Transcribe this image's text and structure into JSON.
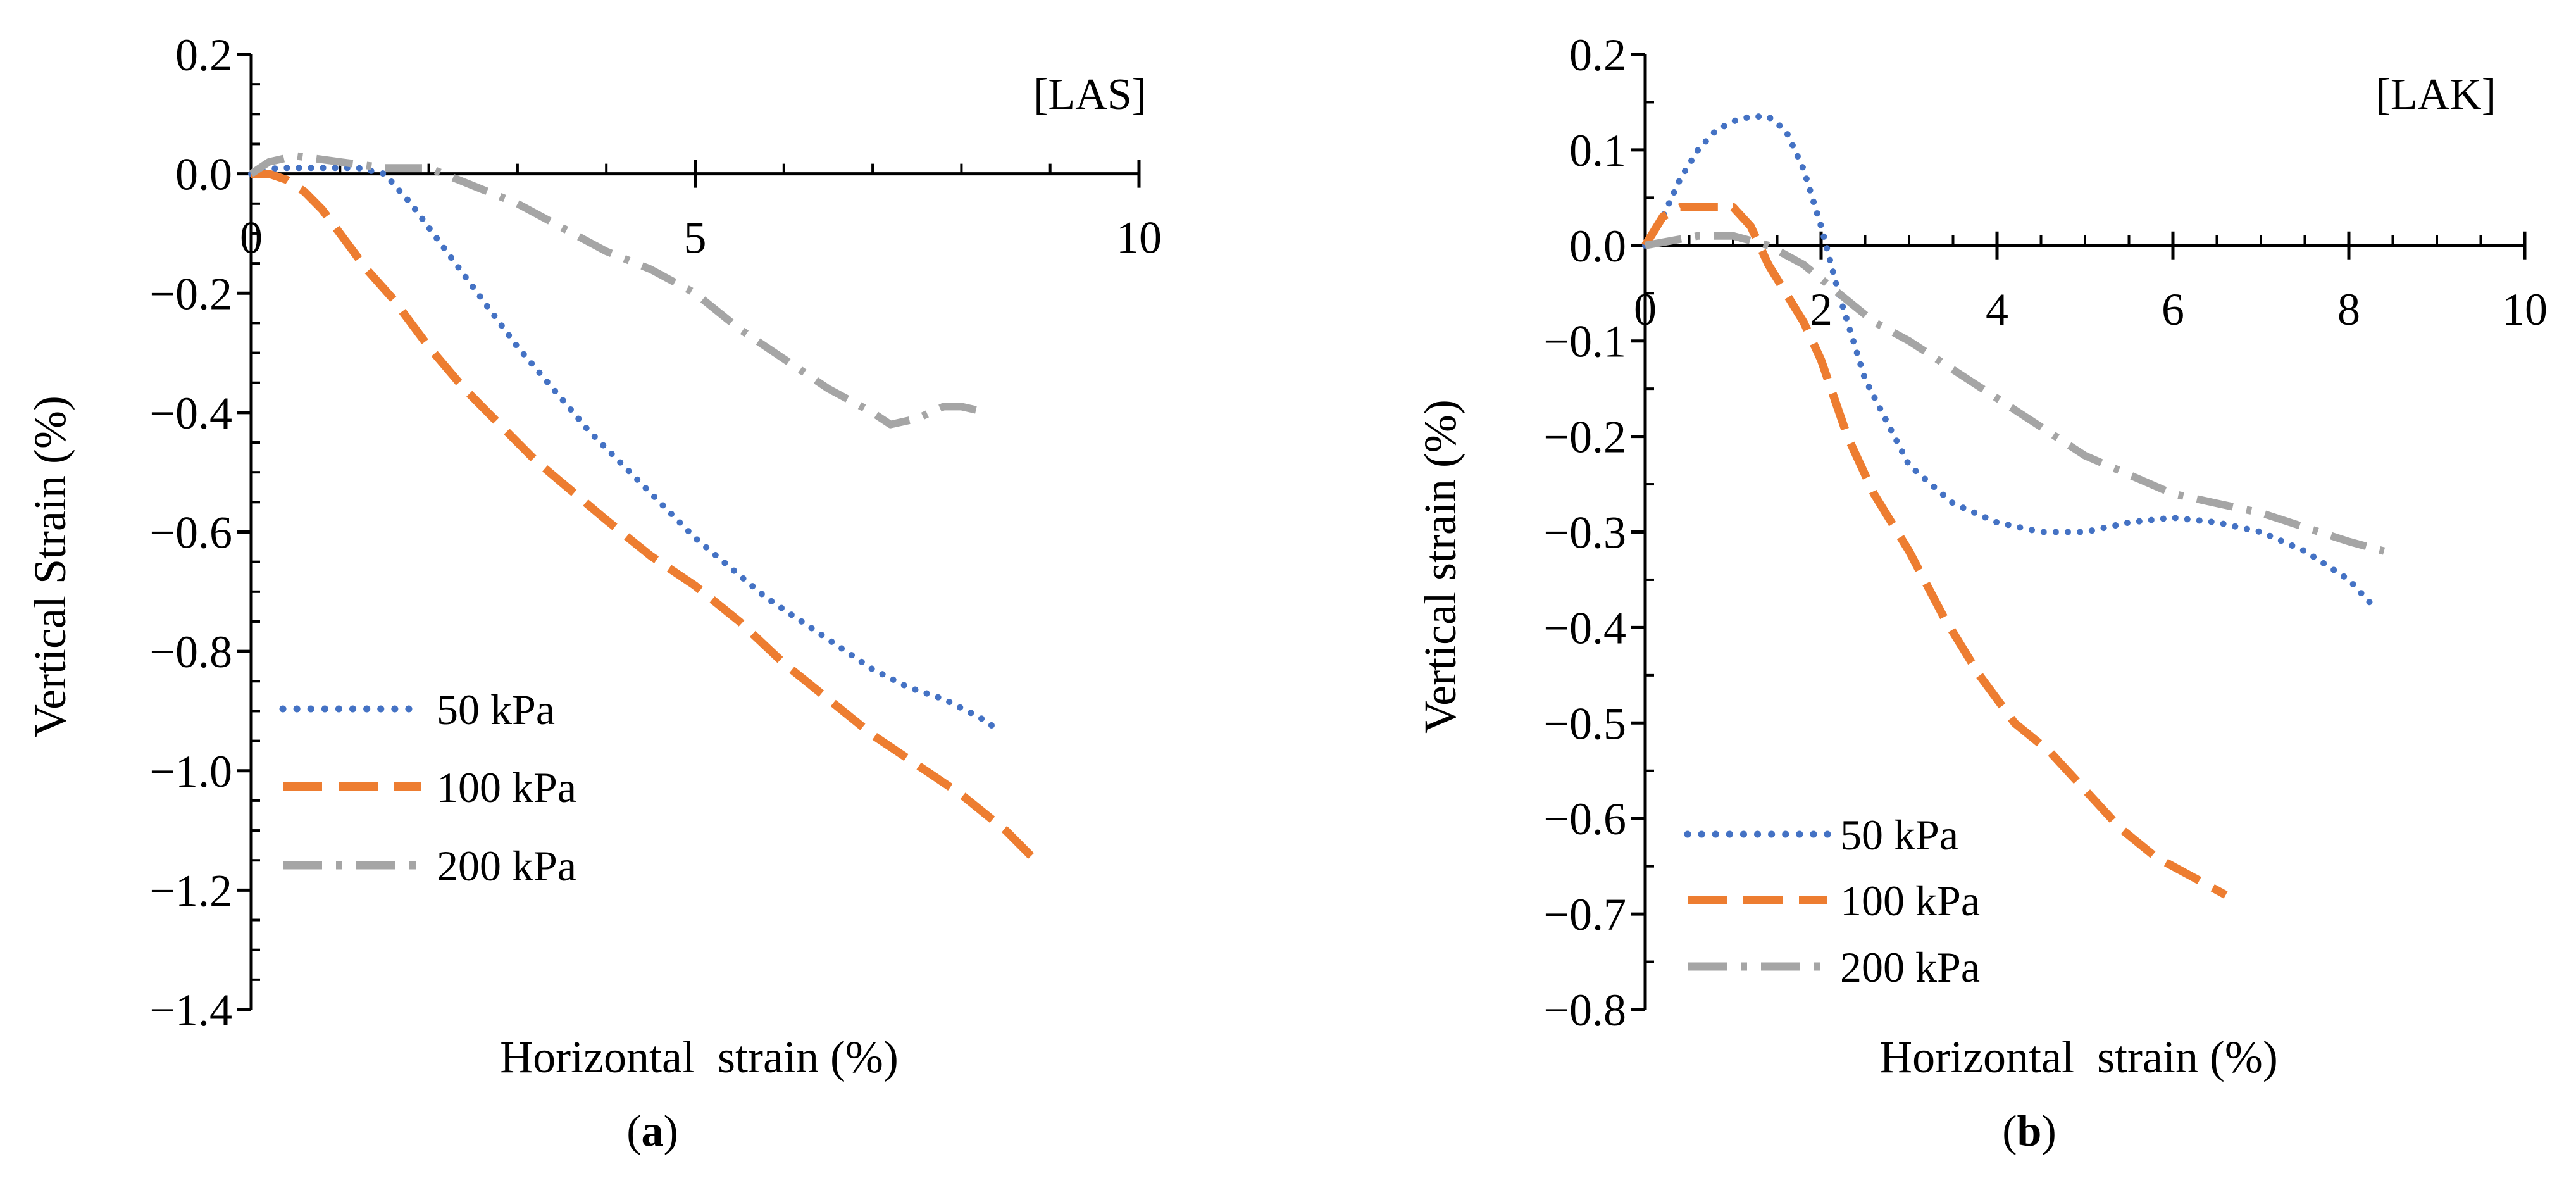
{
  "figure": {
    "captions": [
      {
        "open": "(",
        "letter": "a",
        "close": ")"
      },
      {
        "open": "(",
        "letter": "b",
        "close": ")"
      }
    ]
  },
  "chart_data": [
    {
      "type": "line",
      "panel": "a",
      "tag": "[LAS]",
      "xlabel": "Horizontal  strain (%)",
      "ylabel": "Vertical Strain (%)",
      "xlim": [
        0,
        10
      ],
      "ylim": [
        -1.4,
        0.2
      ],
      "xticks": [
        0,
        5,
        10
      ],
      "xtick_labels": [
        "0",
        "5",
        "10"
      ],
      "xminor_step": 1,
      "yticks": [
        0.2,
        0.0,
        -0.2,
        -0.4,
        -0.6,
        -0.8,
        -1.0,
        -1.2,
        -1.4
      ],
      "ytick_labels": [
        "0.2",
        "0.0",
        "−0.2",
        "−0.4",
        "−0.6",
        "−0.8",
        "−1.0",
        "−1.2",
        "−1.4"
      ],
      "yminor_step": 0.05,
      "grid": false,
      "legend_position": "bottom-left",
      "series": [
        {
          "name": "50 kPa",
          "color": "#4472C4",
          "style": "dotted",
          "x": [
            0,
            0.3,
            0.6,
            0.9,
            1.2,
            1.5,
            1.8,
            2.2,
            2.6,
            3.0,
            3.4,
            3.8,
            4.2,
            4.6,
            5.0,
            5.4,
            5.8,
            6.2,
            6.6,
            7.0,
            7.4,
            7.8,
            8.2,
            8.4
          ],
          "y": [
            0,
            0.01,
            0.01,
            0.01,
            0.01,
            0.0,
            -0.05,
            -0.13,
            -0.21,
            -0.29,
            -0.36,
            -0.43,
            -0.49,
            -0.55,
            -0.61,
            -0.66,
            -0.71,
            -0.75,
            -0.79,
            -0.83,
            -0.86,
            -0.88,
            -0.91,
            -0.93
          ]
        },
        {
          "name": "100 kPa",
          "color": "#ED7D31",
          "style": "dashed",
          "x": [
            0,
            0.2,
            0.4,
            0.6,
            0.8,
            1.0,
            1.3,
            1.6,
            2.0,
            2.4,
            2.8,
            3.2,
            3.6,
            4.0,
            4.5,
            5.0,
            5.5,
            6.0,
            6.5,
            7.0,
            7.5,
            8.0,
            8.5,
            8.9
          ],
          "y": [
            0,
            0.0,
            -0.01,
            -0.03,
            -0.06,
            -0.1,
            -0.16,
            -0.21,
            -0.29,
            -0.36,
            -0.42,
            -0.48,
            -0.53,
            -0.58,
            -0.64,
            -0.69,
            -0.75,
            -0.82,
            -0.88,
            -0.94,
            -0.99,
            -1.04,
            -1.1,
            -1.16
          ]
        },
        {
          "name": "200 kPa",
          "color": "#A5A5A5",
          "style": "dash-dot",
          "x": [
            0,
            0.2,
            0.5,
            1.0,
            1.5,
            2.0,
            2.5,
            3.0,
            3.5,
            4.0,
            4.5,
            5.0,
            5.5,
            6.0,
            6.5,
            7.0,
            7.2,
            7.5,
            7.8,
            8.0,
            8.3
          ],
          "y": [
            0,
            0.02,
            0.03,
            0.02,
            0.01,
            0.01,
            -0.02,
            -0.05,
            -0.09,
            -0.13,
            -0.16,
            -0.2,
            -0.26,
            -0.31,
            -0.36,
            -0.4,
            -0.42,
            -0.41,
            -0.39,
            -0.39,
            -0.4
          ]
        }
      ]
    },
    {
      "type": "line",
      "panel": "b",
      "tag": "[LAK]",
      "xlabel": "Horizontal  strain (%)",
      "ylabel": "Vertical strain (%)",
      "xlim": [
        0,
        10
      ],
      "ylim": [
        -0.8,
        0.2
      ],
      "xticks": [
        0,
        2,
        4,
        6,
        8,
        10
      ],
      "xtick_labels": [
        "0",
        "2",
        "4",
        "6",
        "8",
        "10"
      ],
      "xminor_step": 0.5,
      "yticks": [
        0.2,
        0.1,
        0.0,
        -0.1,
        -0.2,
        -0.3,
        -0.4,
        -0.5,
        -0.6,
        -0.7,
        -0.8
      ],
      "ytick_labels": [
        "0.2",
        "0.1",
        "0.0",
        "−0.1",
        "−0.2",
        "−0.3",
        "−0.4",
        "−0.5",
        "−0.6",
        "−0.7",
        "−0.8"
      ],
      "yminor_step": 0.05,
      "grid": false,
      "legend_position": "bottom-left",
      "series": [
        {
          "name": "50 kPa",
          "color": "#4472C4",
          "style": "dotted",
          "x": [
            0,
            0.2,
            0.4,
            0.6,
            0.8,
            1.0,
            1.2,
            1.4,
            1.6,
            1.8,
            2.0,
            2.2,
            2.5,
            3.0,
            3.5,
            4.0,
            4.5,
            5.0,
            5.5,
            6.0,
            6.5,
            7.0,
            7.5,
            8.0,
            8.3
          ],
          "y": [
            0,
            0.03,
            0.07,
            0.1,
            0.12,
            0.13,
            0.135,
            0.135,
            0.12,
            0.08,
            0.02,
            -0.05,
            -0.14,
            -0.23,
            -0.27,
            -0.29,
            -0.3,
            -0.3,
            -0.29,
            -0.285,
            -0.29,
            -0.3,
            -0.32,
            -0.35,
            -0.38
          ]
        },
        {
          "name": "100 kPa",
          "color": "#ED7D31",
          "style": "dashed",
          "x": [
            0,
            0.2,
            0.4,
            0.7,
            1.0,
            1.2,
            1.4,
            1.6,
            1.8,
            2.0,
            2.3,
            2.6,
            3.0,
            3.4,
            3.8,
            4.2,
            4.6,
            5.0,
            5.4,
            5.8,
            6.2,
            6.6
          ],
          "y": [
            0,
            0.03,
            0.04,
            0.04,
            0.04,
            0.02,
            -0.02,
            -0.05,
            -0.08,
            -0.12,
            -0.2,
            -0.26,
            -0.32,
            -0.39,
            -0.45,
            -0.5,
            -0.53,
            -0.57,
            -0.61,
            -0.64,
            -0.66,
            -0.68
          ]
        },
        {
          "name": "200 kPa",
          "color": "#A5A5A5",
          "style": "dash-dot",
          "x": [
            0,
            0.3,
            0.6,
            1.0,
            1.4,
            1.8,
            2.2,
            2.6,
            3.0,
            3.5,
            4.0,
            4.5,
            5.0,
            5.5,
            6.0,
            6.5,
            7.0,
            7.5,
            8.0,
            8.4
          ],
          "y": [
            0,
            0.005,
            0.01,
            0.01,
            0.0,
            -0.02,
            -0.05,
            -0.08,
            -0.1,
            -0.13,
            -0.16,
            -0.19,
            -0.22,
            -0.24,
            -0.26,
            -0.27,
            -0.28,
            -0.295,
            -0.31,
            -0.32
          ]
        }
      ]
    }
  ]
}
